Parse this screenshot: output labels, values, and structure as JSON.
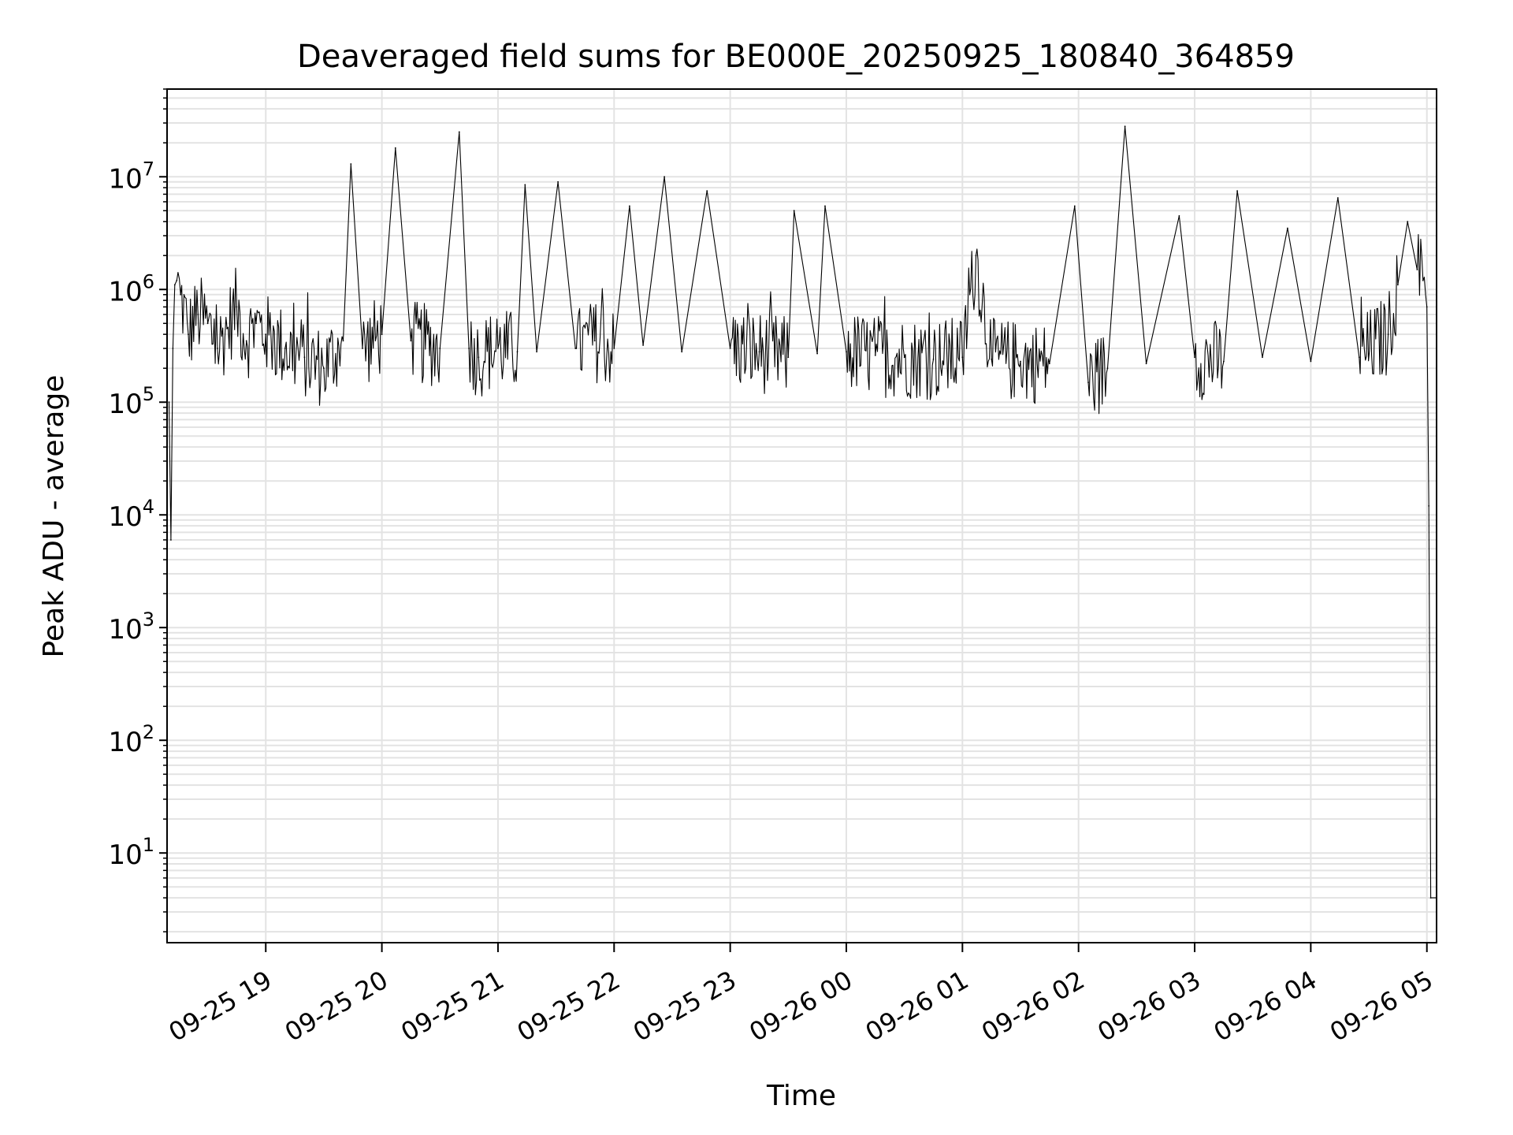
{
  "chart_data": {
    "type": "line",
    "title": "Deaveraged field sums for BE000E_20250925_180840_364859",
    "xlabel": "Time",
    "ylabel": "Peak ADU - average",
    "x_axis_type": "datetime",
    "xlim": [
      "2025-09-25 18:09",
      "2025-09-26 05:05"
    ],
    "ylim": [
      1.6,
      60000000
    ],
    "yscale": "log",
    "grid": true,
    "line_color": "#000000",
    "x_ticks": [
      {
        "t": "2025-09-25 19:00",
        "label": "09-25 19"
      },
      {
        "t": "2025-09-25 20:00",
        "label": "09-25 20"
      },
      {
        "t": "2025-09-25 21:00",
        "label": "09-25 21"
      },
      {
        "t": "2025-09-25 22:00",
        "label": "09-25 22"
      },
      {
        "t": "2025-09-25 23:00",
        "label": "09-25 23"
      },
      {
        "t": "2025-09-26 00:00",
        "label": "09-26 00"
      },
      {
        "t": "2025-09-26 01:00",
        "label": "09-26 01"
      },
      {
        "t": "2025-09-26 02:00",
        "label": "09-26 02"
      },
      {
        "t": "2025-09-26 03:00",
        "label": "09-26 03"
      },
      {
        "t": "2025-09-26 04:00",
        "label": "09-26 04"
      },
      {
        "t": "2025-09-26 05:00",
        "label": "09-26 05"
      }
    ],
    "y_ticks": [
      {
        "value": 10,
        "base": "10",
        "exp": "1"
      },
      {
        "value": 100,
        "base": "10",
        "exp": "2"
      },
      {
        "value": 1000,
        "base": "10",
        "exp": "3"
      },
      {
        "value": 10000,
        "base": "10",
        "exp": "4"
      },
      {
        "value": 100000,
        "base": "10",
        "exp": "5"
      },
      {
        "value": 1000000,
        "base": "10",
        "exp": "6"
      },
      {
        "value": 10000000,
        "base": "10",
        "exp": "7"
      }
    ],
    "series": [
      {
        "x": [
          "2025-09-25 18:10",
          "2025-09-25 18:11",
          "2025-09-25 18:12",
          "2025-09-25 18:13",
          "2025-09-25 18:14",
          "2025-09-25 18:16",
          "2025-09-25 18:20",
          "2025-09-25 18:25",
          "2025-09-25 18:30",
          "2025-09-25 18:35",
          "2025-09-25 18:40",
          "2025-09-25 18:45",
          "2025-09-25 18:50",
          "2025-09-25 18:55",
          "2025-09-25 19:00",
          "2025-09-25 19:10",
          "2025-09-25 19:20",
          "2025-09-25 19:30",
          "2025-09-25 19:40",
          "2025-09-25 19:44",
          "2025-09-25 19:50",
          "2025-09-25 20:00",
          "2025-09-25 20:07",
          "2025-09-25 20:15",
          "2025-09-25 20:30",
          "2025-09-25 20:40",
          "2025-09-25 20:45",
          "2025-09-25 20:50",
          "2025-09-25 21:00",
          "2025-09-25 21:10",
          "2025-09-25 21:14",
          "2025-09-25 21:20",
          "2025-09-25 21:31",
          "2025-09-25 21:40",
          "2025-09-25 21:50",
          "2025-09-25 22:00",
          "2025-09-25 22:08",
          "2025-09-25 22:15",
          "2025-09-25 22:26",
          "2025-09-25 22:35",
          "2025-09-25 22:48",
          "2025-09-25 23:00",
          "2025-09-25 23:15",
          "2025-09-25 23:30",
          "2025-09-25 23:33",
          "2025-09-25 23:45",
          "2025-09-25 23:49",
          "2025-09-26 00:00",
          "2025-09-26 00:15",
          "2025-09-26 00:30",
          "2025-09-26 00:45",
          "2025-09-26 01:00",
          "2025-09-26 01:07",
          "2025-09-26 01:15",
          "2025-09-26 01:30",
          "2025-09-26 01:45",
          "2025-09-26 01:58",
          "2025-09-26 02:05",
          "2025-09-26 02:15",
          "2025-09-26 02:24",
          "2025-09-26 02:35",
          "2025-09-26 02:52",
          "2025-09-26 03:00",
          "2025-09-26 03:15",
          "2025-09-26 03:22",
          "2025-09-26 03:35",
          "2025-09-26 03:48",
          "2025-09-26 04:00",
          "2025-09-26 04:14",
          "2025-09-26 04:25",
          "2025-09-26 04:40",
          "2025-09-26 04:45",
          "2025-09-26 04:50",
          "2025-09-26 04:55",
          "2025-09-26 04:58",
          "2025-09-26 05:00",
          "2025-09-26 05:01",
          "2025-09-26 05:02",
          "2025-09-26 05:05"
        ],
        "y": [
          100000,
          6000,
          300000,
          1100000,
          1200000,
          900000,
          400000,
          600000,
          500000,
          300000,
          450000,
          700000,
          350000,
          500000,
          400000,
          300000,
          250000,
          200000,
          350000,
          13000000,
          300000,
          400000,
          18000000,
          350000,
          300000,
          25000000,
          300000,
          250000,
          300000,
          280000,
          8500000,
          280000,
          9000000,
          300000,
          350000,
          300000,
          5500000,
          320000,
          10000000,
          280000,
          7500000,
          300000,
          280000,
          250000,
          5000000,
          270000,
          5500000,
          280000,
          260000,
          250000,
          240000,
          250000,
          2000000,
          240000,
          230000,
          220000,
          5500000,
          150000,
          200000,
          28000000,
          220000,
          4500000,
          250000,
          230000,
          7500000,
          250000,
          3500000,
          230000,
          6500000,
          250000,
          400000,
          1100000,
          4000000,
          1500000,
          1200000,
          700000,
          12000,
          4,
          4
        ]
      }
    ]
  }
}
